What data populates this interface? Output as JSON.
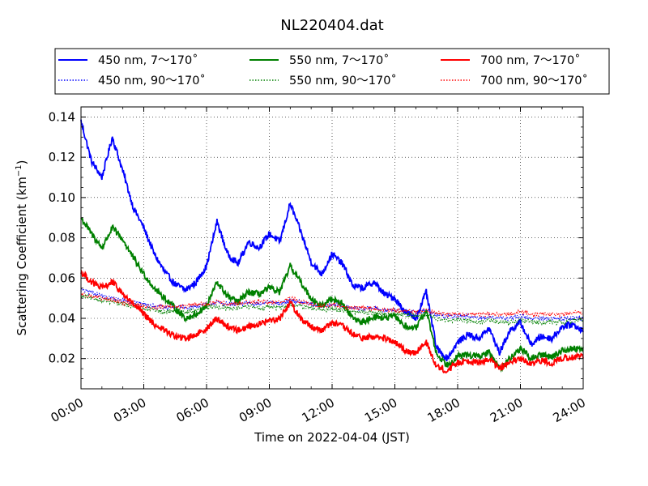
{
  "chart_data": {
    "type": "line",
    "title": "NL220404.dat",
    "xlabel": "Time on 2022-04-04 (JST)",
    "ylabel_prefix": "Scattering Coefficient (km",
    "ylabel_sup": "−1",
    "ylabel_suffix": ")",
    "xlim": [
      0,
      24
    ],
    "ylim": [
      0.005,
      0.145
    ],
    "grid": true,
    "legend_position": "top, outside plot, 3 columns",
    "x_ticks": [
      {
        "x": 0,
        "label": "00:00"
      },
      {
        "x": 3,
        "label": "03:00"
      },
      {
        "x": 6,
        "label": "06:00"
      },
      {
        "x": 9,
        "label": "09:00"
      },
      {
        "x": 12,
        "label": "12:00"
      },
      {
        "x": 15,
        "label": "15:00"
      },
      {
        "x": 18,
        "label": "18:00"
      },
      {
        "x": 21,
        "label": "21:00"
      },
      {
        "x": 24,
        "label": "24:00"
      }
    ],
    "y_ticks": [
      {
        "y": 0.02,
        "label": "0.02"
      },
      {
        "y": 0.04,
        "label": "0.04"
      },
      {
        "y": 0.06,
        "label": "0.06"
      },
      {
        "y": 0.08,
        "label": "0.08"
      },
      {
        "y": 0.1,
        "label": "0.10"
      },
      {
        "y": 0.12,
        "label": "0.12"
      },
      {
        "y": 0.14,
        "label": "0.14"
      }
    ],
    "x": [
      0,
      0.5,
      1,
      1.5,
      2,
      2.5,
      3,
      3.5,
      4,
      4.5,
      5,
      5.5,
      6,
      6.5,
      7,
      7.5,
      8,
      8.5,
      9,
      9.5,
      10,
      10.5,
      11,
      11.5,
      12,
      12.5,
      13,
      13.5,
      14,
      14.5,
      15,
      15.5,
      16,
      16.5,
      17,
      17.5,
      18,
      18.5,
      19,
      19.5,
      20,
      20.5,
      21,
      21.5,
      22,
      22.5,
      23,
      23.5,
      24
    ],
    "series": [
      {
        "name": "450 nm, 7～170˚",
        "color": "#0000ff",
        "style": "solid",
        "values": [
          0.138,
          0.118,
          0.11,
          0.13,
          0.113,
          0.095,
          0.085,
          0.072,
          0.063,
          0.057,
          0.054,
          0.058,
          0.066,
          0.088,
          0.072,
          0.067,
          0.078,
          0.075,
          0.082,
          0.078,
          0.097,
          0.083,
          0.068,
          0.062,
          0.072,
          0.067,
          0.056,
          0.055,
          0.058,
          0.052,
          0.05,
          0.043,
          0.04,
          0.053,
          0.025,
          0.02,
          0.028,
          0.032,
          0.03,
          0.035,
          0.023,
          0.034,
          0.038,
          0.027,
          0.031,
          0.03,
          0.036,
          0.037,
          0.034
        ]
      },
      {
        "name": "450 nm, 90～170˚",
        "color": "#0000ff",
        "style": "dotted",
        "values": [
          0.054,
          0.053,
          0.051,
          0.05,
          0.049,
          0.048,
          0.047,
          0.046,
          0.045,
          0.046,
          0.045,
          0.046,
          0.047,
          0.048,
          0.047,
          0.047,
          0.048,
          0.047,
          0.048,
          0.047,
          0.049,
          0.048,
          0.047,
          0.046,
          0.047,
          0.046,
          0.045,
          0.045,
          0.045,
          0.044,
          0.044,
          0.044,
          0.043,
          0.044,
          0.042,
          0.041,
          0.041,
          0.041,
          0.04,
          0.041,
          0.04,
          0.04,
          0.041,
          0.04,
          0.04,
          0.04,
          0.04,
          0.04,
          0.04
        ]
      },
      {
        "name": "550 nm, 7～170˚",
        "color": "#008000",
        "style": "solid",
        "values": [
          0.09,
          0.082,
          0.075,
          0.085,
          0.079,
          0.07,
          0.062,
          0.055,
          0.05,
          0.045,
          0.04,
          0.042,
          0.046,
          0.058,
          0.051,
          0.048,
          0.053,
          0.052,
          0.055,
          0.053,
          0.066,
          0.058,
          0.05,
          0.046,
          0.05,
          0.047,
          0.04,
          0.038,
          0.041,
          0.04,
          0.041,
          0.036,
          0.035,
          0.044,
          0.022,
          0.017,
          0.021,
          0.022,
          0.021,
          0.023,
          0.015,
          0.02,
          0.025,
          0.02,
          0.022,
          0.021,
          0.024,
          0.025,
          0.025
        ]
      },
      {
        "name": "550 nm, 90～170˚",
        "color": "#008000",
        "style": "dotted",
        "values": [
          0.051,
          0.05,
          0.049,
          0.048,
          0.047,
          0.046,
          0.045,
          0.044,
          0.043,
          0.044,
          0.043,
          0.044,
          0.045,
          0.046,
          0.045,
          0.045,
          0.046,
          0.045,
          0.046,
          0.045,
          0.047,
          0.046,
          0.045,
          0.044,
          0.045,
          0.044,
          0.043,
          0.043,
          0.043,
          0.042,
          0.042,
          0.042,
          0.041,
          0.042,
          0.04,
          0.039,
          0.039,
          0.039,
          0.038,
          0.039,
          0.038,
          0.038,
          0.039,
          0.038,
          0.038,
          0.038,
          0.038,
          0.039,
          0.039
        ]
      },
      {
        "name": "700 nm, 7～170˚",
        "color": "#ff0000",
        "style": "solid",
        "values": [
          0.063,
          0.058,
          0.055,
          0.058,
          0.052,
          0.047,
          0.042,
          0.037,
          0.034,
          0.031,
          0.03,
          0.032,
          0.035,
          0.04,
          0.036,
          0.034,
          0.036,
          0.037,
          0.039,
          0.04,
          0.048,
          0.04,
          0.036,
          0.034,
          0.038,
          0.036,
          0.032,
          0.03,
          0.031,
          0.03,
          0.028,
          0.024,
          0.023,
          0.028,
          0.016,
          0.014,
          0.018,
          0.019,
          0.018,
          0.02,
          0.015,
          0.018,
          0.02,
          0.017,
          0.019,
          0.018,
          0.02,
          0.021,
          0.021
        ]
      },
      {
        "name": "700 nm, 90～170˚",
        "color": "#ff0000",
        "style": "dotted",
        "values": [
          0.052,
          0.051,
          0.05,
          0.049,
          0.048,
          0.047,
          0.046,
          0.045,
          0.046,
          0.046,
          0.046,
          0.047,
          0.047,
          0.048,
          0.047,
          0.047,
          0.048,
          0.048,
          0.048,
          0.048,
          0.05,
          0.048,
          0.047,
          0.046,
          0.047,
          0.046,
          0.045,
          0.045,
          0.045,
          0.044,
          0.044,
          0.044,
          0.043,
          0.044,
          0.043,
          0.042,
          0.042,
          0.042,
          0.042,
          0.042,
          0.042,
          0.042,
          0.043,
          0.042,
          0.042,
          0.042,
          0.042,
          0.043,
          0.043
        ]
      }
    ]
  }
}
